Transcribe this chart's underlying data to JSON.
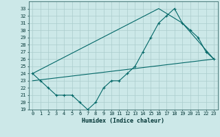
{
  "xlabel": "Humidex (Indice chaleur)",
  "bg_color": "#cce8e8",
  "grid_color": "#aacccc",
  "line_color": "#006666",
  "xlim": [
    -0.5,
    23.5
  ],
  "ylim": [
    19,
    34
  ],
  "xticks": [
    0,
    1,
    2,
    3,
    4,
    5,
    6,
    7,
    8,
    9,
    10,
    11,
    12,
    13,
    14,
    15,
    16,
    17,
    18,
    19,
    20,
    21,
    22,
    23
  ],
  "yticks": [
    19,
    20,
    21,
    22,
    23,
    24,
    25,
    26,
    27,
    28,
    29,
    30,
    31,
    32,
    33
  ],
  "line1_x": [
    0,
    1,
    2,
    3,
    4,
    5,
    6,
    7,
    8,
    9,
    10,
    11,
    12,
    13,
    14,
    15,
    16,
    17,
    18,
    19,
    20,
    21,
    22,
    23
  ],
  "line1_y": [
    24,
    23,
    22,
    21,
    21,
    21,
    20,
    19,
    20,
    22,
    23,
    23,
    24,
    25,
    27,
    29,
    31,
    32,
    33,
    31,
    30,
    29,
    27,
    26
  ],
  "line2_x": [
    0,
    16,
    19,
    23
  ],
  "line2_y": [
    24,
    33,
    31,
    26
  ],
  "line3_x": [
    0,
    23
  ],
  "line3_y": [
    23,
    26
  ]
}
